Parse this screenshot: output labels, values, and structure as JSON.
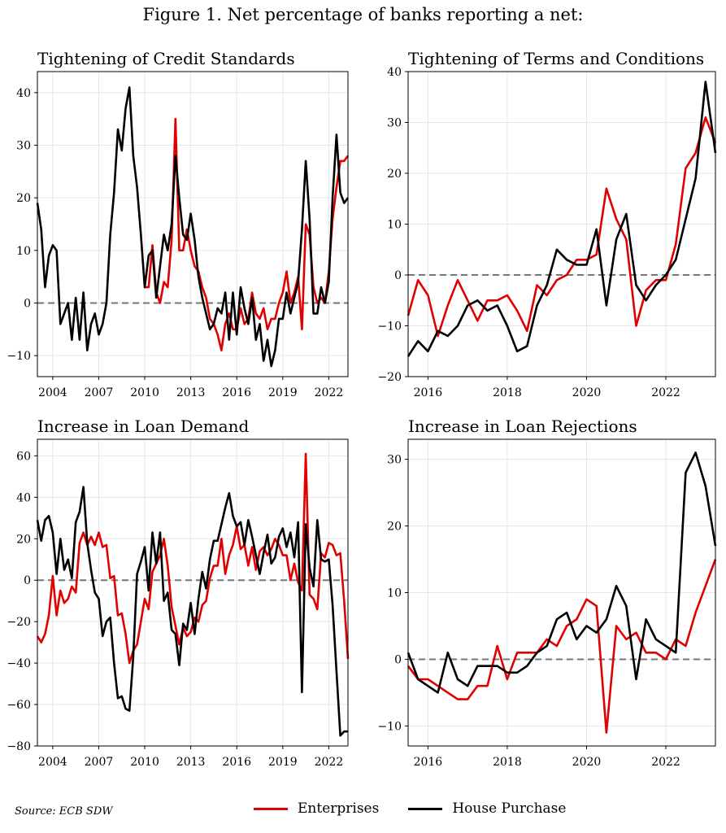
{
  "figure_title": "Figure 1. Net percentage of banks reporting a net:",
  "source": "Source: ECB SDW",
  "legend": [
    {
      "label": "Enterprises",
      "color": "#e00000"
    },
    {
      "label": "House Purchase",
      "color": "#000000"
    }
  ],
  "chart_data": [
    {
      "type": "line",
      "title": "Tightening of Credit Standards",
      "xlim": [
        2003.0,
        2023.25
      ],
      "ylim": [
        -14,
        44
      ],
      "xticks": [
        2004,
        2007,
        2010,
        2013,
        2016,
        2019,
        2022
      ],
      "yticks": [
        -10,
        0,
        10,
        20,
        30,
        40
      ],
      "zero_line": true,
      "series": [
        {
          "name": "Enterprises",
          "color": "#e00000",
          "x": [
            2010.0,
            2010.25,
            2010.5,
            2010.75,
            2011.0,
            2011.25,
            2011.5,
            2011.75,
            2012.0,
            2012.25,
            2012.5,
            2012.75,
            2013.0,
            2013.25,
            2013.5,
            2013.75,
            2014.0,
            2014.25,
            2014.5,
            2014.75,
            2015.0,
            2015.25,
            2015.5,
            2015.75,
            2016.0,
            2016.25,
            2016.5,
            2016.75,
            2017.0,
            2017.25,
            2017.5,
            2017.75,
            2018.0,
            2018.25,
            2018.5,
            2018.75,
            2019.0,
            2019.25,
            2019.5,
            2019.75,
            2020.0,
            2020.25,
            2020.5,
            2020.75,
            2021.0,
            2021.25,
            2021.5,
            2021.75,
            2022.0,
            2022.25,
            2022.5,
            2022.75,
            2023.0,
            2023.25
          ],
          "y": [
            3,
            3,
            11,
            2,
            0,
            4,
            3,
            12,
            35,
            10,
            10,
            14,
            10,
            7,
            6,
            3,
            1,
            -3,
            -4,
            -6,
            -9,
            -4,
            -2,
            -5,
            -5,
            -1,
            -4,
            -3,
            2,
            -2,
            -3,
            -1,
            -5,
            -3,
            -3,
            0,
            2,
            6,
            0,
            2,
            5,
            -5,
            15,
            13,
            3,
            0,
            1,
            0,
            6,
            16,
            22,
            27,
            27,
            28
          ]
        },
        {
          "name": "House Purchase",
          "color": "#000000",
          "x": [
            2003.0,
            2003.25,
            2003.5,
            2003.75,
            2004.0,
            2004.25,
            2004.5,
            2004.75,
            2005.0,
            2005.25,
            2005.5,
            2005.75,
            2006.0,
            2006.25,
            2006.5,
            2006.75,
            2007.0,
            2007.25,
            2007.5,
            2007.75,
            2008.0,
            2008.25,
            2008.5,
            2008.75,
            2009.0,
            2009.25,
            2009.5,
            2009.75,
            2010.0,
            2010.25,
            2010.5,
            2010.75,
            2011.0,
            2011.25,
            2011.5,
            2011.75,
            2012.0,
            2012.25,
            2012.5,
            2012.75,
            2013.0,
            2013.25,
            2013.5,
            2013.75,
            2014.0,
            2014.25,
            2014.5,
            2014.75,
            2015.0,
            2015.25,
            2015.5,
            2015.75,
            2016.0,
            2016.25,
            2016.5,
            2016.75,
            2017.0,
            2017.25,
            2017.5,
            2017.75,
            2018.0,
            2018.25,
            2018.5,
            2018.75,
            2019.0,
            2019.25,
            2019.5,
            2019.75,
            2020.0,
            2020.25,
            2020.5,
            2020.75,
            2021.0,
            2021.25,
            2021.5,
            2021.75,
            2022.0,
            2022.25,
            2022.5,
            2022.75,
            2023.0,
            2023.25
          ],
          "y": [
            19,
            14,
            3,
            9,
            11,
            10,
            -4,
            -2,
            0,
            -7,
            1,
            -7,
            2,
            -9,
            -4,
            -2,
            -6,
            -4,
            0,
            13,
            21,
            33,
            29,
            37,
            41,
            28,
            22,
            13,
            3,
            9,
            10,
            1,
            7,
            13,
            10,
            15,
            28,
            20,
            13,
            12,
            17,
            12,
            5,
            1,
            -2,
            -5,
            -4,
            -1,
            -2,
            2,
            -7,
            2,
            -6,
            3,
            -1,
            -4,
            1,
            -7,
            -4,
            -11,
            -7,
            -12,
            -9,
            -3,
            -3,
            2,
            -2,
            1,
            4,
            14,
            27,
            16,
            -2,
            -2,
            3,
            0,
            4,
            20,
            32,
            21,
            19,
            20
          ]
        }
      ]
    },
    {
      "type": "line",
      "title": "Tightening of Terms and Conditions",
      "xlim": [
        2015.5,
        2023.25
      ],
      "ylim": [
        -20,
        40
      ],
      "xticks": [
        2016,
        2018,
        2020,
        2022
      ],
      "yticks": [
        -20,
        -10,
        0,
        10,
        20,
        30,
        40
      ],
      "zero_line": true,
      "series": [
        {
          "name": "Enterprises",
          "color": "#e00000",
          "x": [
            2015.5,
            2015.75,
            2016.0,
            2016.25,
            2016.5,
            2016.75,
            2017.0,
            2017.25,
            2017.5,
            2017.75,
            2018.0,
            2018.25,
            2018.5,
            2018.75,
            2019.0,
            2019.25,
            2019.5,
            2019.75,
            2020.0,
            2020.25,
            2020.5,
            2020.75,
            2021.0,
            2021.25,
            2021.5,
            2021.75,
            2022.0,
            2022.25,
            2022.5,
            2022.75,
            2023.0,
            2023.25
          ],
          "y": [
            -8,
            -1,
            -4,
            -12,
            -6,
            -1,
            -5,
            -9,
            -5,
            -5,
            -4,
            -7,
            -11,
            -2,
            -4,
            -1,
            0,
            3,
            3,
            4,
            17,
            11,
            7,
            -10,
            -3,
            -1,
            -1,
            6,
            21,
            24,
            31,
            26
          ]
        },
        {
          "name": "House Purchase",
          "color": "#000000",
          "x": [
            2015.5,
            2015.75,
            2016.0,
            2016.25,
            2016.5,
            2016.75,
            2017.0,
            2017.25,
            2017.5,
            2017.75,
            2018.0,
            2018.25,
            2018.5,
            2018.75,
            2019.0,
            2019.25,
            2019.5,
            2019.75,
            2020.0,
            2020.25,
            2020.5,
            2020.75,
            2021.0,
            2021.25,
            2021.5,
            2021.75,
            2022.0,
            2022.25,
            2022.5,
            2022.75,
            2023.0,
            2023.25
          ],
          "y": [
            -16,
            -13,
            -15,
            -11,
            -12,
            -10,
            -6,
            -5,
            -7,
            -6,
            -10,
            -15,
            -14,
            -6,
            -2,
            5,
            3,
            2,
            2,
            9,
            -6,
            7,
            12,
            -2,
            -5,
            -2,
            0,
            3,
            11,
            19,
            38,
            24
          ]
        }
      ]
    },
    {
      "type": "line",
      "title": "Increase in Loan Demand",
      "xlim": [
        2003.0,
        2023.25
      ],
      "ylim": [
        -80,
        68
      ],
      "xticks": [
        2004,
        2007,
        2010,
        2013,
        2016,
        2019,
        2022
      ],
      "yticks": [
        -80,
        -60,
        -40,
        -20,
        0,
        20,
        40,
        60
      ],
      "zero_line": true,
      "series": [
        {
          "name": "Enterprises",
          "color": "#e00000",
          "x": [
            2003.0,
            2003.25,
            2003.5,
            2003.75,
            2004.0,
            2004.25,
            2004.5,
            2004.75,
            2005.0,
            2005.25,
            2005.5,
            2005.75,
            2006.0,
            2006.25,
            2006.5,
            2006.75,
            2007.0,
            2007.25,
            2007.5,
            2007.75,
            2008.0,
            2008.25,
            2008.5,
            2008.75,
            2009.0,
            2009.25,
            2009.5,
            2009.75,
            2010.0,
            2010.25,
            2010.5,
            2010.75,
            2011.0,
            2011.25,
            2011.5,
            2011.75,
            2012.0,
            2012.25,
            2012.5,
            2012.75,
            2013.0,
            2013.25,
            2013.5,
            2013.75,
            2014.0,
            2014.25,
            2014.5,
            2014.75,
            2015.0,
            2015.25,
            2015.5,
            2015.75,
            2016.0,
            2016.25,
            2016.5,
            2016.75,
            2017.0,
            2017.25,
            2017.5,
            2017.75,
            2018.0,
            2018.25,
            2018.5,
            2018.75,
            2019.0,
            2019.25,
            2019.5,
            2019.75,
            2020.0,
            2020.25,
            2020.5,
            2020.75,
            2021.0,
            2021.25,
            2021.5,
            2021.75,
            2022.0,
            2022.25,
            2022.5,
            2022.75,
            2023.0,
            2023.25
          ],
          "y": [
            -27,
            -30,
            -26,
            -17,
            2,
            -17,
            -5,
            -11,
            -9,
            -3,
            -6,
            18,
            23,
            17,
            21,
            17,
            23,
            16,
            17,
            1,
            2,
            -17,
            -16,
            -26,
            -40,
            -34,
            -31,
            -20,
            -9,
            -14,
            4,
            8,
            12,
            20,
            7,
            -13,
            -22,
            -31,
            -23,
            -27,
            -25,
            -18,
            -20,
            -12,
            -10,
            1,
            7,
            7,
            20,
            3,
            12,
            17,
            26,
            15,
            17,
            7,
            16,
            5,
            14,
            16,
            12,
            15,
            20,
            17,
            12,
            12,
            0,
            8,
            -1,
            -5,
            61,
            -7,
            -9,
            -14,
            13,
            11,
            18,
            17,
            12,
            13,
            -10,
            -38
          ]
        },
        {
          "name": "House Purchase",
          "color": "#000000",
          "x": [
            2003.0,
            2003.25,
            2003.5,
            2003.75,
            2004.0,
            2004.25,
            2004.5,
            2004.75,
            2005.0,
            2005.25,
            2005.5,
            2005.75,
            2006.0,
            2006.25,
            2006.5,
            2006.75,
            2007.0,
            2007.25,
            2007.5,
            2007.75,
            2008.0,
            2008.25,
            2008.5,
            2008.75,
            2009.0,
            2009.25,
            2009.5,
            2009.75,
            2010.0,
            2010.25,
            2010.5,
            2010.75,
            2011.0,
            2011.25,
            2011.5,
            2011.75,
            2012.0,
            2012.25,
            2012.5,
            2012.75,
            2013.0,
            2013.25,
            2013.5,
            2013.75,
            2014.0,
            2014.25,
            2014.5,
            2014.75,
            2015.0,
            2015.25,
            2015.5,
            2015.75,
            2016.0,
            2016.25,
            2016.5,
            2016.75,
            2017.0,
            2017.25,
            2017.5,
            2017.75,
            2018.0,
            2018.25,
            2018.5,
            2018.75,
            2019.0,
            2019.25,
            2019.5,
            2019.75,
            2020.0,
            2020.25,
            2020.5,
            2020.75,
            2021.0,
            2021.25,
            2021.5,
            2021.75,
            2022.0,
            2022.25,
            2022.5,
            2022.75,
            2023.0,
            2023.25
          ],
          "y": [
            29,
            19,
            29,
            31,
            23,
            3,
            20,
            5,
            10,
            1,
            28,
            33,
            45,
            18,
            5,
            -6,
            -9,
            -27,
            -20,
            -18,
            -40,
            -57,
            -56,
            -62,
            -63,
            -37,
            3,
            9,
            16,
            -5,
            23,
            8,
            23,
            -10,
            -6,
            -24,
            -26,
            -41,
            -21,
            -24,
            -11,
            -26,
            -9,
            4,
            -4,
            10,
            19,
            19,
            27,
            35,
            42,
            31,
            26,
            28,
            17,
            29,
            21,
            12,
            3,
            13,
            22,
            8,
            11,
            21,
            25,
            16,
            23,
            11,
            28,
            -54,
            27,
            6,
            -3,
            29,
            10,
            9,
            10,
            -12,
            -44,
            -75,
            -73,
            -73
          ]
        }
      ]
    },
    {
      "type": "line",
      "title": "Increase in Loan Rejections",
      "xlim": [
        2015.5,
        2023.25
      ],
      "ylim": [
        -13,
        33
      ],
      "xticks": [
        2016,
        2018,
        2020,
        2022
      ],
      "yticks": [
        -10,
        0,
        10,
        20,
        30
      ],
      "zero_line": true,
      "series": [
        {
          "name": "Enterprises",
          "color": "#e00000",
          "x": [
            2015.5,
            2015.75,
            2016.0,
            2016.25,
            2016.5,
            2016.75,
            2017.0,
            2017.25,
            2017.5,
            2017.75,
            2018.0,
            2018.25,
            2018.5,
            2018.75,
            2019.0,
            2019.25,
            2019.5,
            2019.75,
            2020.0,
            2020.25,
            2020.5,
            2020.75,
            2021.0,
            2021.25,
            2021.5,
            2021.75,
            2022.0,
            2022.25,
            2022.5,
            2022.75,
            2023.0,
            2023.25
          ],
          "y": [
            -1,
            -3,
            -3,
            -4,
            -5,
            -6,
            -6,
            -4,
            -4,
            2,
            -3,
            1,
            1,
            1,
            3,
            2,
            5,
            6,
            9,
            8,
            -11,
            5,
            3,
            4,
            1,
            1,
            0,
            3,
            2,
            7,
            11,
            15
          ]
        },
        {
          "name": "House Purchase",
          "color": "#000000",
          "x": [
            2015.5,
            2015.75,
            2016.0,
            2016.25,
            2016.5,
            2016.75,
            2017.0,
            2017.25,
            2017.5,
            2017.75,
            2018.0,
            2018.25,
            2018.5,
            2018.75,
            2019.0,
            2019.25,
            2019.5,
            2019.75,
            2020.0,
            2020.25,
            2020.5,
            2020.75,
            2021.0,
            2021.25,
            2021.5,
            2021.75,
            2022.0,
            2022.25,
            2022.5,
            2022.75,
            2023.0,
            2023.25
          ],
          "y": [
            1,
            -3,
            -4,
            -5,
            1,
            -3,
            -4,
            -1,
            -1,
            -1,
            -2,
            -2,
            -1,
            1,
            2,
            6,
            7,
            3,
            5,
            4,
            6,
            11,
            8,
            -3,
            6,
            3,
            2,
            1,
            28,
            31,
            26,
            17
          ]
        }
      ]
    }
  ]
}
